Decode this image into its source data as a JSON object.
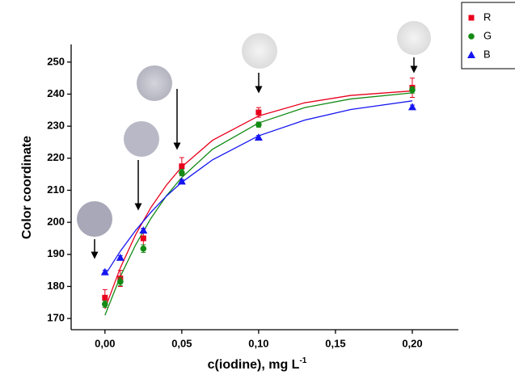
{
  "chart_data": {
    "type": "scatter",
    "x_label": "c(iodine), mg L",
    "x_label_superscript": "-1",
    "y_label": "Color coordinate",
    "x": [
      0,
      0.01,
      0.025,
      0.05,
      0.1,
      0.2
    ],
    "series": [
      {
        "name": "R",
        "color": "#e8001c",
        "marker": "square",
        "values": [
          176.5,
          182.5,
          195,
          217.5,
          234.3,
          242
        ],
        "errors": [
          2.5,
          2.5,
          3,
          2.7,
          1.5,
          3
        ]
      },
      {
        "name": "G",
        "color": "#138a13",
        "marker": "circle",
        "values": [
          174.5,
          181.5,
          191.8,
          215.5,
          230.5,
          241.3
        ],
        "errors": [
          1,
          1.2,
          1.2,
          1,
          0.8,
          1
        ]
      },
      {
        "name": "B",
        "color": "#1515f0",
        "marker": "triangle",
        "values": [
          184.5,
          189,
          197.5,
          212.8,
          226.5,
          236
        ],
        "errors": [
          0.6,
          0.6,
          0.6,
          0.6,
          0.6,
          0.6
        ]
      }
    ],
    "fits": {
      "x": [
        0,
        0.01,
        0.02,
        0.03,
        0.04,
        0.05,
        0.07,
        0.1,
        0.13,
        0.16,
        0.2
      ],
      "series": [
        {
          "color": "#e8001c",
          "values": [
            173.0,
            185.8,
            196.2,
            204.7,
            211.6,
            217.3,
            225.6,
            233.2,
            237.3,
            239.6,
            241.0
          ]
        },
        {
          "color": "#138a13",
          "values": [
            171.0,
            183.1,
            193.0,
            201.3,
            208.3,
            214.0,
            222.8,
            231.0,
            235.8,
            238.5,
            240.4
          ]
        },
        {
          "color": "#1515f0",
          "values": [
            183.5,
            191.0,
            197.5,
            203.2,
            208.2,
            212.5,
            219.5,
            227.0,
            231.9,
            235.2,
            237.9
          ]
        }
      ]
    },
    "xlim": [
      -0.022,
      0.23
    ],
    "ylim": [
      166.5,
      255.5
    ],
    "xticks": [
      {
        "value": 0,
        "label": "0,00"
      },
      {
        "value": 0.05,
        "label": "0,05"
      },
      {
        "value": 0.1,
        "label": "0,10"
      },
      {
        "value": 0.15,
        "label": "0,15"
      },
      {
        "value": 0.2,
        "label": "0,20"
      }
    ],
    "yticks": [
      170,
      180,
      190,
      200,
      210,
      220,
      230,
      240,
      250
    ],
    "legend": "top-right"
  }
}
